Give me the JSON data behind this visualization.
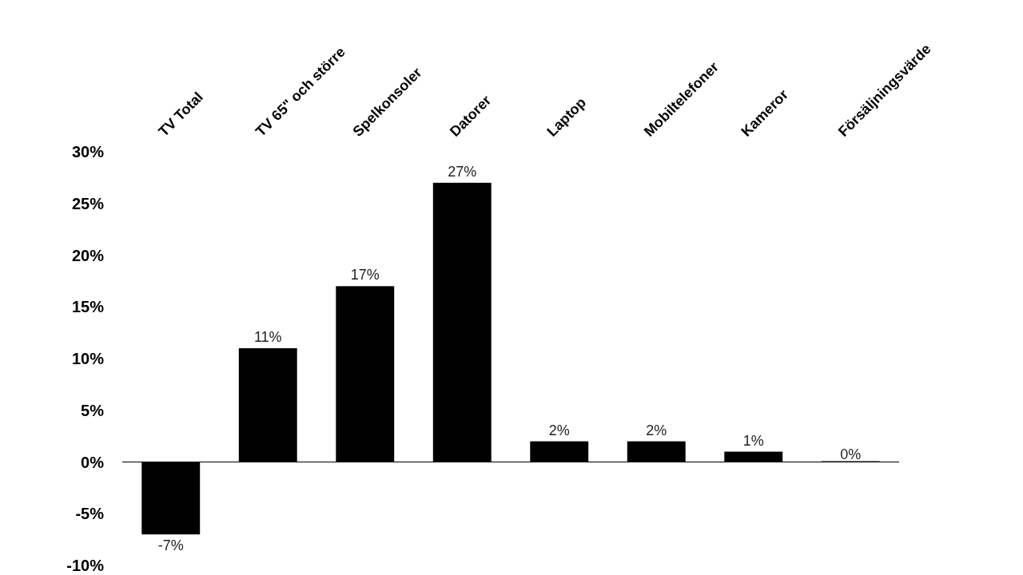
{
  "chart_data": {
    "type": "bar",
    "categories": [
      "TV Total",
      "TV 65\" och större",
      "Spelkonsoler",
      "Datorer",
      "Laptop",
      "Mobiltelefoner",
      "Kameror",
      "Försäljningsvärde"
    ],
    "values": [
      -7,
      11,
      17,
      27,
      2,
      2,
      1,
      0
    ],
    "value_labels": [
      "-7%",
      "11%",
      "17%",
      "27%",
      "2%",
      "2%",
      "1%",
      "0%"
    ],
    "color": "#000000",
    "ylim": [
      -10,
      30
    ],
    "yticks": [
      {
        "value": -10,
        "label": "-10%"
      },
      {
        "value": -5,
        "label": "-5%"
      },
      {
        "value": 0,
        "label": "0%"
      },
      {
        "value": 5,
        "label": "5%"
      },
      {
        "value": 10,
        "label": "10%"
      },
      {
        "value": 15,
        "label": "15%"
      },
      {
        "value": 20,
        "label": "20%"
      },
      {
        "value": 25,
        "label": "25%"
      },
      {
        "value": 30,
        "label": "30%"
      }
    ]
  }
}
